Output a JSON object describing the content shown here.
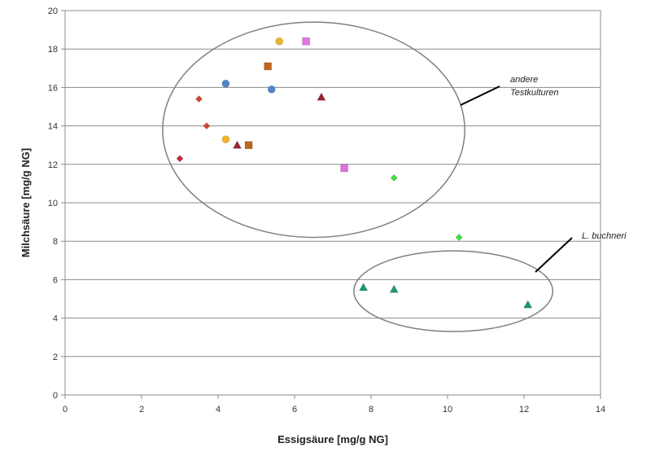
{
  "chart_data": {
    "type": "scatter",
    "title": "",
    "xlabel": "Essigsäure [mg/g NG]",
    "ylabel": "Milchsäure [mg/g NG]",
    "xlim": [
      0,
      14
    ],
    "ylim": [
      0,
      20
    ],
    "x_ticks": [
      "0",
      "2",
      "4",
      "6",
      "8",
      "10",
      "12",
      "14"
    ],
    "y_ticks": [
      "0",
      "2",
      "4",
      "6",
      "8",
      "10",
      "12",
      "14",
      "16",
      "18",
      "20"
    ],
    "grid": "horizontal",
    "legend": "none",
    "series": [
      {
        "marker": "diamond",
        "color": "#d2452a",
        "points": [
          {
            "x": 3.5,
            "y": 15.4
          },
          {
            "x": 3.7,
            "y": 14.0
          }
        ]
      },
      {
        "marker": "diamond",
        "color": "#c8263a",
        "points": [
          {
            "x": 3.0,
            "y": 12.3
          }
        ]
      },
      {
        "marker": "circle",
        "color": "#4f86c6",
        "points": [
          {
            "x": 4.2,
            "y": 16.2
          },
          {
            "x": 5.4,
            "y": 15.9
          }
        ]
      },
      {
        "marker": "circle",
        "color": "#f2b429",
        "points": [
          {
            "x": 4.2,
            "y": 13.3
          },
          {
            "x": 5.6,
            "y": 18.4
          }
        ]
      },
      {
        "marker": "triangle",
        "color": "#9b2335",
        "points": [
          {
            "x": 4.5,
            "y": 13.0
          },
          {
            "x": 6.7,
            "y": 15.5
          }
        ]
      },
      {
        "marker": "square",
        "color": "#c0651e",
        "points": [
          {
            "x": 4.8,
            "y": 13.0
          },
          {
            "x": 5.3,
            "y": 17.1
          }
        ]
      },
      {
        "marker": "square",
        "color": "#e073e0",
        "points": [
          {
            "x": 6.3,
            "y": 18.4
          },
          {
            "x": 7.3,
            "y": 11.8
          }
        ]
      },
      {
        "marker": "diamond",
        "color": "#3ee23e",
        "points": [
          {
            "x": 8.6,
            "y": 11.3
          },
          {
            "x": 10.3,
            "y": 8.2
          }
        ]
      },
      {
        "marker": "triangle",
        "color": "#1a9a6c",
        "points": [
          {
            "x": 7.8,
            "y": 5.6
          },
          {
            "x": 8.6,
            "y": 5.5
          },
          {
            "x": 12.1,
            "y": 4.7
          }
        ]
      }
    ],
    "annotations": [
      {
        "lines": [
          "andere",
          "Testkulturen"
        ],
        "ellipse": {
          "cx": 6.5,
          "cy": 13.8,
          "rx": 3.95,
          "ry": 5.6
        }
      },
      {
        "lines": [
          "L. buchneri"
        ],
        "ellipse": {
          "cx": 10.15,
          "cy": 5.4,
          "rx": 2.6,
          "ry": 2.1
        }
      }
    ]
  }
}
